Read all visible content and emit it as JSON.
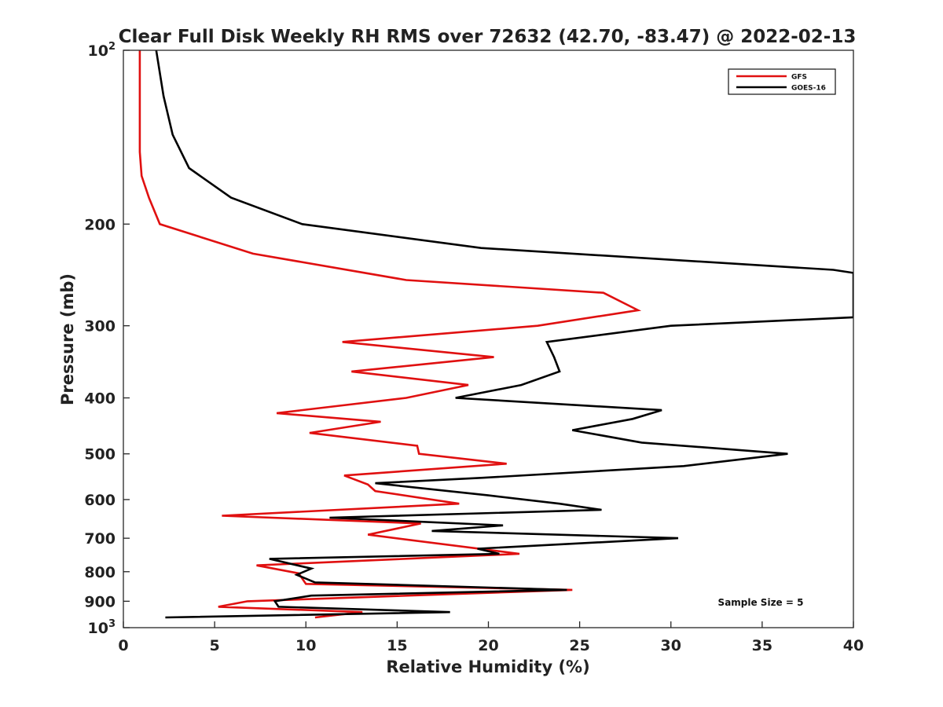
{
  "chart_data": {
    "type": "line",
    "orientation": "profile",
    "title": "Clear Full Disk Weekly RH RMS over 72632 (42.70, -83.47) @ 2022-02-13",
    "xlabel": "Relative Humidity (%)",
    "ylabel": "Pressure (mb)",
    "xlim": [
      0,
      40
    ],
    "ylim": [
      100,
      1000
    ],
    "y_scale": "log",
    "y_reversed": true,
    "x_ticks": [
      "0",
      "5",
      "10",
      "15",
      "20",
      "25",
      "30",
      "35",
      "40"
    ],
    "y_ticks": [
      {
        "value": 100,
        "base": "10",
        "exp": "2"
      },
      {
        "value": 200,
        "base": "200",
        "exp": ""
      },
      {
        "value": 300,
        "base": "300",
        "exp": ""
      },
      {
        "value": 400,
        "base": "400",
        "exp": ""
      },
      {
        "value": 500,
        "base": "500",
        "exp": ""
      },
      {
        "value": 600,
        "base": "600",
        "exp": ""
      },
      {
        "value": 700,
        "base": "700",
        "exp": ""
      },
      {
        "value": 800,
        "base": "800",
        "exp": ""
      },
      {
        "value": 900,
        "base": "900",
        "exp": ""
      },
      {
        "value": 1000,
        "base": "10",
        "exp": "3"
      }
    ],
    "grid": false,
    "legend_position": "top-right",
    "annotation": "Sample Size = 5",
    "series": [
      {
        "name": "GFS",
        "color": "#e01010",
        "points": [
          [
            0.9,
            100
          ],
          [
            0.9,
            125
          ],
          [
            0.9,
            150
          ],
          [
            1.0,
            165
          ],
          [
            1.4,
            180
          ],
          [
            2.0,
            200
          ],
          [
            7.1,
            225
          ],
          [
            15.5,
            250
          ],
          [
            26.3,
            263
          ],
          [
            28.2,
            282
          ],
          [
            22.7,
            300
          ],
          [
            12.0,
            320
          ],
          [
            20.3,
            340
          ],
          [
            12.5,
            360
          ],
          [
            18.9,
            380
          ],
          [
            15.5,
            400
          ],
          [
            8.4,
            425
          ],
          [
            14.1,
            440
          ],
          [
            10.2,
            460
          ],
          [
            16.1,
            484
          ],
          [
            16.2,
            500
          ],
          [
            21.0,
            520
          ],
          [
            12.1,
            545
          ],
          [
            13.4,
            565
          ],
          [
            13.8,
            580
          ],
          [
            18.4,
            610
          ],
          [
            5.4,
            640
          ],
          [
            16.3,
            660
          ],
          [
            13.4,
            690
          ],
          [
            21.7,
            745
          ],
          [
            7.3,
            780
          ],
          [
            9.6,
            805
          ],
          [
            10.0,
            840
          ],
          [
            24.6,
            860
          ],
          [
            6.8,
            900
          ],
          [
            5.2,
            920
          ],
          [
            13.1,
            940
          ],
          [
            10.5,
            960
          ]
        ]
      },
      {
        "name": "GOES-16",
        "color": "#000000",
        "points": [
          [
            1.8,
            100
          ],
          [
            2.2,
            120
          ],
          [
            2.7,
            140
          ],
          [
            3.6,
            160
          ],
          [
            5.9,
            180
          ],
          [
            9.8,
            200
          ],
          [
            19.6,
            220
          ],
          [
            38.9,
            240
          ],
          [
            40.0,
            243
          ],
          [
            40.0,
            290
          ],
          [
            30.0,
            300
          ],
          [
            23.2,
            320
          ],
          [
            23.6,
            340
          ],
          [
            23.9,
            360
          ],
          [
            21.8,
            380
          ],
          [
            18.2,
            400
          ],
          [
            29.5,
            420
          ],
          [
            27.9,
            435
          ],
          [
            24.6,
            455
          ],
          [
            28.4,
            478
          ],
          [
            36.4,
            500
          ],
          [
            30.7,
            525
          ],
          [
            19.7,
            550
          ],
          [
            13.8,
            562
          ],
          [
            20.0,
            590
          ],
          [
            23.9,
            610
          ],
          [
            26.2,
            625
          ],
          [
            11.3,
            645
          ],
          [
            20.8,
            665
          ],
          [
            16.9,
            680
          ],
          [
            30.4,
            700
          ],
          [
            19.4,
            730
          ],
          [
            20.6,
            745
          ],
          [
            8.0,
            760
          ],
          [
            10.3,
            790
          ],
          [
            9.5,
            810
          ],
          [
            10.5,
            835
          ],
          [
            24.3,
            860
          ],
          [
            10.3,
            880
          ],
          [
            8.3,
            900
          ],
          [
            8.5,
            920
          ],
          [
            17.9,
            940
          ],
          [
            2.3,
            960
          ]
        ]
      }
    ]
  }
}
